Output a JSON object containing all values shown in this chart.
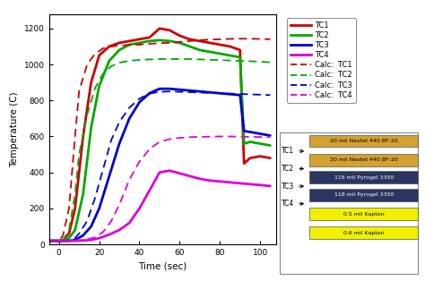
{
  "xlabel": "Time (sec)",
  "ylabel": "Temperature (C)",
  "xlim": [
    -5,
    108
  ],
  "ylim": [
    0,
    1280
  ],
  "yticks": [
    0,
    200,
    400,
    600,
    800,
    1000,
    1200
  ],
  "xticks": [
    0,
    20,
    40,
    60,
    80,
    100
  ],
  "bg_color": "#ffffff",
  "tc1_solid": {
    "t": [
      -5,
      0,
      2,
      5,
      8,
      12,
      16,
      20,
      25,
      30,
      35,
      40,
      45,
      48,
      50,
      55,
      60,
      65,
      70,
      75,
      80,
      85,
      90,
      92,
      95,
      100,
      105
    ],
    "v": [
      20,
      20,
      25,
      60,
      200,
      600,
      900,
      1050,
      1100,
      1120,
      1130,
      1140,
      1150,
      1180,
      1200,
      1190,
      1160,
      1140,
      1130,
      1120,
      1110,
      1100,
      1080,
      450,
      480,
      490,
      480
    ],
    "color": "#cc0000",
    "lw": 2.0
  },
  "tc2_solid": {
    "t": [
      -5,
      0,
      2,
      5,
      8,
      12,
      16,
      20,
      25,
      30,
      35,
      40,
      45,
      50,
      55,
      60,
      65,
      70,
      75,
      80,
      85,
      90,
      92,
      95,
      100,
      105
    ],
    "v": [
      20,
      20,
      22,
      35,
      80,
      280,
      650,
      880,
      1020,
      1080,
      1110,
      1120,
      1130,
      1135,
      1130,
      1120,
      1100,
      1080,
      1070,
      1060,
      1050,
      1040,
      560,
      570,
      560,
      550
    ],
    "color": "#00aa00",
    "lw": 2.0
  },
  "tc3_solid": {
    "t": [
      -5,
      0,
      2,
      5,
      8,
      12,
      16,
      20,
      25,
      30,
      35,
      40,
      45,
      50,
      55,
      60,
      65,
      70,
      75,
      80,
      85,
      90,
      92,
      95,
      100,
      105
    ],
    "v": [
      20,
      20,
      20,
      20,
      25,
      50,
      100,
      200,
      380,
      560,
      700,
      790,
      840,
      865,
      865,
      860,
      855,
      850,
      845,
      840,
      835,
      830,
      630,
      625,
      615,
      605
    ],
    "color": "#0000cc",
    "lw": 2.0
  },
  "tc4_solid": {
    "t": [
      -5,
      0,
      2,
      5,
      8,
      12,
      16,
      20,
      25,
      30,
      35,
      40,
      45,
      50,
      55,
      60,
      65,
      70,
      75,
      80,
      85,
      90,
      95,
      100,
      105
    ],
    "v": [
      20,
      20,
      20,
      20,
      20,
      22,
      25,
      35,
      55,
      80,
      120,
      200,
      300,
      400,
      410,
      395,
      380,
      365,
      355,
      350,
      345,
      340,
      335,
      330,
      325
    ],
    "color": "#dd00dd",
    "lw": 2.0
  },
  "tc1_calc": {
    "t": [
      -5,
      0,
      2,
      5,
      8,
      10,
      14,
      18,
      22,
      26,
      30,
      35,
      40,
      45,
      50,
      55,
      60,
      65,
      70,
      75,
      80,
      85,
      90,
      95,
      100,
      105
    ],
    "v": [
      20,
      20,
      50,
      200,
      600,
      850,
      1000,
      1060,
      1090,
      1100,
      1105,
      1108,
      1110,
      1115,
      1118,
      1120,
      1125,
      1130,
      1135,
      1138,
      1140,
      1142,
      1143,
      1143,
      1142,
      1140
    ],
    "color": "#cc0000",
    "lw": 1.3
  },
  "tc2_calc": {
    "t": [
      -5,
      0,
      2,
      5,
      8,
      10,
      14,
      18,
      22,
      26,
      30,
      35,
      40,
      45,
      50,
      55,
      60,
      65,
      70,
      75,
      80,
      85,
      90,
      95,
      100,
      105
    ],
    "v": [
      20,
      20,
      25,
      80,
      280,
      500,
      720,
      870,
      950,
      990,
      1010,
      1020,
      1025,
      1028,
      1030,
      1030,
      1030,
      1030,
      1028,
      1026,
      1024,
      1022,
      1020,
      1018,
      1015,
      1012
    ],
    "color": "#00aa00",
    "lw": 1.3
  },
  "tc3_calc": {
    "t": [
      -5,
      0,
      2,
      5,
      8,
      10,
      14,
      18,
      22,
      26,
      30,
      35,
      40,
      45,
      50,
      55,
      60,
      65,
      70,
      75,
      80,
      85,
      90,
      95,
      100,
      105
    ],
    "v": [
      20,
      20,
      20,
      22,
      35,
      60,
      130,
      260,
      420,
      580,
      680,
      760,
      810,
      838,
      848,
      850,
      848,
      846,
      844,
      842,
      840,
      838,
      836,
      834,
      832,
      830
    ],
    "color": "#0000cc",
    "lw": 1.3
  },
  "tc4_calc": {
    "t": [
      -5,
      0,
      2,
      5,
      8,
      10,
      14,
      18,
      22,
      26,
      30,
      35,
      40,
      45,
      50,
      55,
      60,
      65,
      70,
      75,
      80,
      85,
      90,
      95,
      100,
      105
    ],
    "v": [
      20,
      20,
      20,
      20,
      20,
      22,
      28,
      40,
      70,
      130,
      220,
      360,
      460,
      530,
      570,
      585,
      592,
      596,
      598,
      599,
      600,
      600,
      599,
      598,
      597,
      596
    ],
    "color": "#dd00dd",
    "lw": 1.3
  },
  "legend_entries": [
    {
      "label": "TC1",
      "color": "#cc0000",
      "linestyle": "solid"
    },
    {
      "label": "TC2",
      "color": "#00aa00",
      "linestyle": "solid"
    },
    {
      "label": "TC3",
      "color": "#0000cc",
      "linestyle": "solid"
    },
    {
      "label": "TC4",
      "color": "#dd00dd",
      "linestyle": "solid"
    },
    {
      "label": "Calc:  TC1",
      "color": "#cc0000",
      "linestyle": "dashed"
    },
    {
      "label": "Calc:  TC2",
      "color": "#00aa00",
      "linestyle": "dashed"
    },
    {
      "label": "Calc:  TC3",
      "color": "#0000cc",
      "linestyle": "dashed"
    },
    {
      "label": "Calc:  TC4",
      "color": "#dd00dd",
      "linestyle": "dashed"
    }
  ],
  "annotation_box": {
    "tc1_label": "TC1",
    "tc2_label": "TC2",
    "tc3_label": "TC3",
    "tc4_label": "TC4",
    "box1_text": "20 mil Nextel 440 BF-20",
    "box2_text": "20 mil Nextel 440 BF-20",
    "box3_text": "118 mil Pyrogel 3350",
    "box4_text": "118 mil Pyrogel 3350",
    "box5_text": "0.5 mil Kapton",
    "box6_text": "0.6 mil Kapton",
    "box1_color": "#d4a030",
    "box2_color": "#d4a030",
    "box3_color": "#2a3560",
    "box4_color": "#2a3560",
    "box5_color": "#f0f000",
    "box6_color": "#f0f000"
  }
}
